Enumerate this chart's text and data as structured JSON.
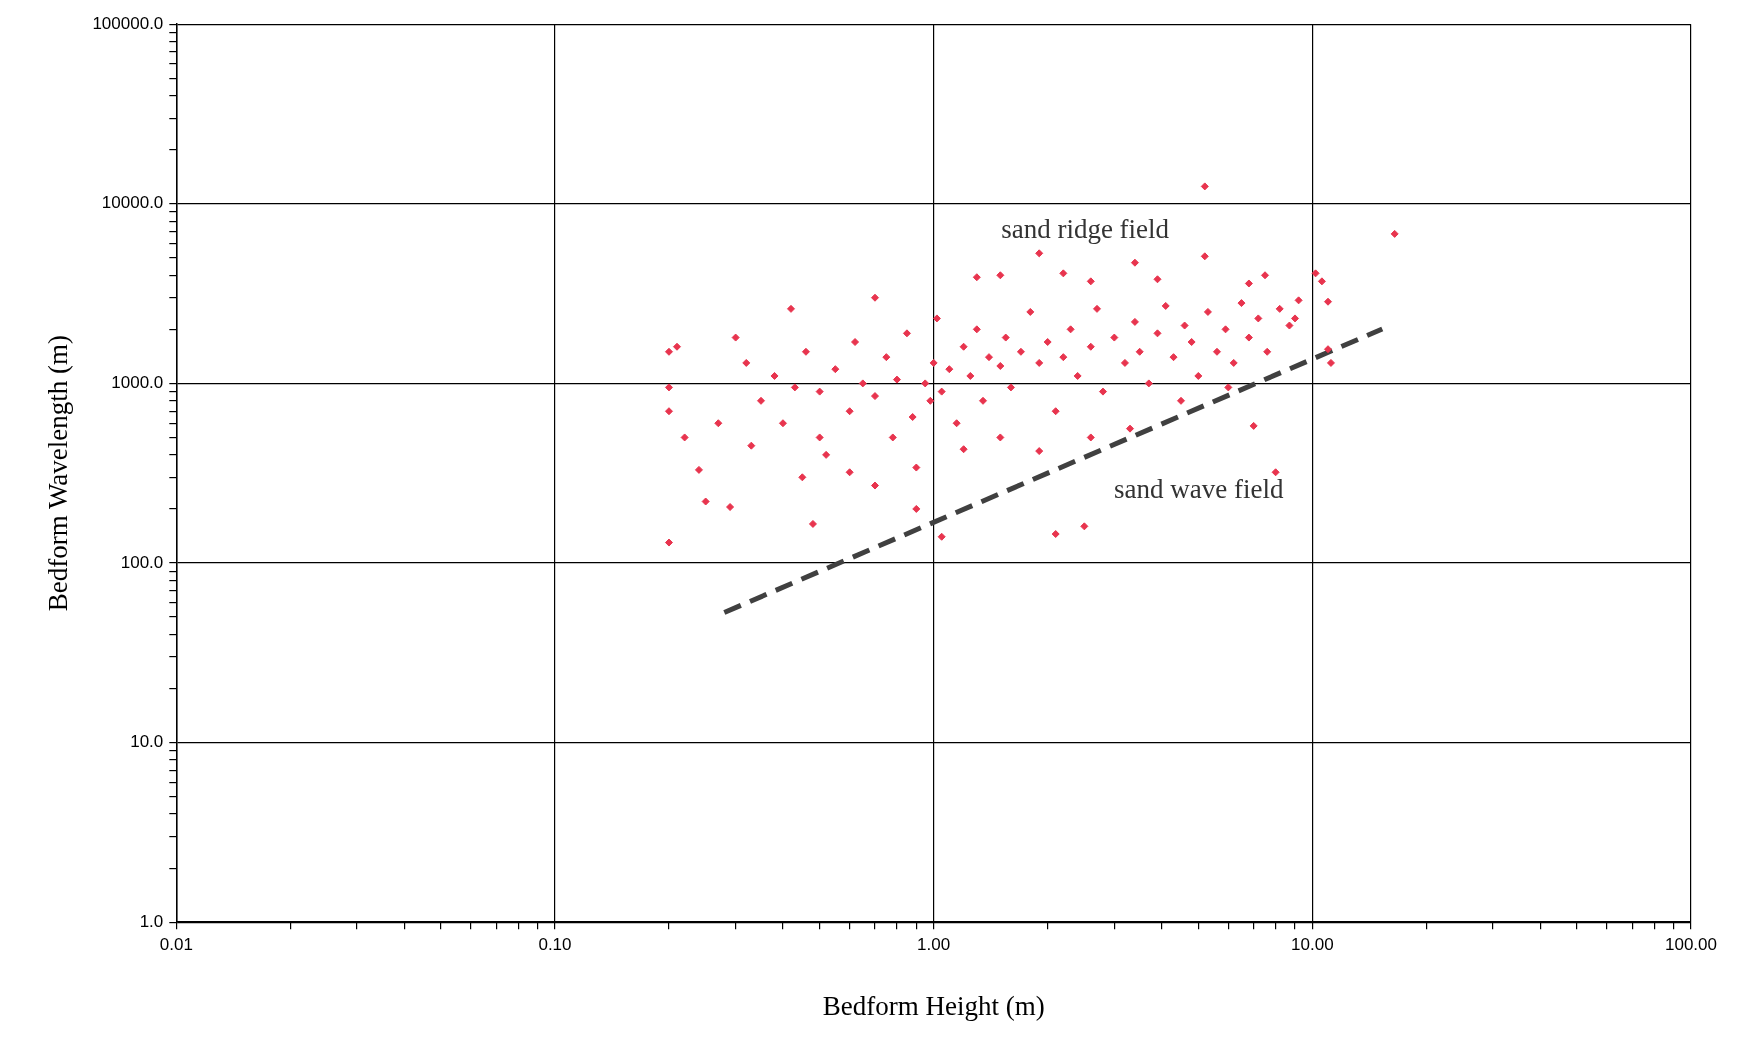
{
  "chart_data": {
    "type": "scatter",
    "xlabel": "Bedform Height (m)",
    "ylabel": "Bedform Wavelength (m)",
    "log": "xy",
    "xlim": [
      0.01,
      100
    ],
    "ylim": [
      1,
      100000
    ],
    "xticks": [
      {
        "value": 0.01,
        "label": "0.01"
      },
      {
        "value": 0.02,
        "label": null
      },
      {
        "value": 0.03,
        "label": null
      },
      {
        "value": 0.04,
        "label": null
      },
      {
        "value": 0.05,
        "label": null
      },
      {
        "value": 0.06,
        "label": null
      },
      {
        "value": 0.07,
        "label": null
      },
      {
        "value": 0.08,
        "label": null
      },
      {
        "value": 0.09,
        "label": null
      },
      {
        "value": 0.1,
        "label": "0.10"
      },
      {
        "value": 0.2,
        "label": null
      },
      {
        "value": 0.3,
        "label": null
      },
      {
        "value": 0.4,
        "label": null
      },
      {
        "value": 0.5,
        "label": null
      },
      {
        "value": 0.6,
        "label": null
      },
      {
        "value": 0.7,
        "label": null
      },
      {
        "value": 0.8,
        "label": null
      },
      {
        "value": 0.9,
        "label": null
      },
      {
        "value": 1,
        "label": "1.00"
      },
      {
        "value": 2,
        "label": null
      },
      {
        "value": 3,
        "label": null
      },
      {
        "value": 4,
        "label": null
      },
      {
        "value": 5,
        "label": null
      },
      {
        "value": 6,
        "label": null
      },
      {
        "value": 7,
        "label": null
      },
      {
        "value": 8,
        "label": null
      },
      {
        "value": 9,
        "label": null
      },
      {
        "value": 10,
        "label": "10.00"
      },
      {
        "value": 20,
        "label": null
      },
      {
        "value": 30,
        "label": null
      },
      {
        "value": 40,
        "label": null
      },
      {
        "value": 50,
        "label": null
      },
      {
        "value": 60,
        "label": null
      },
      {
        "value": 70,
        "label": null
      },
      {
        "value": 80,
        "label": null
      },
      {
        "value": 90,
        "label": null
      },
      {
        "value": 100,
        "label": "100.00"
      }
    ],
    "yticks": [
      {
        "value": 1,
        "label": "1.0"
      },
      {
        "value": 2,
        "label": null
      },
      {
        "value": 3,
        "label": null
      },
      {
        "value": 4,
        "label": null
      },
      {
        "value": 5,
        "label": null
      },
      {
        "value": 6,
        "label": null
      },
      {
        "value": 7,
        "label": null
      },
      {
        "value": 8,
        "label": null
      },
      {
        "value": 9,
        "label": null
      },
      {
        "value": 10,
        "label": "10.0"
      },
      {
        "value": 20,
        "label": null
      },
      {
        "value": 30,
        "label": null
      },
      {
        "value": 40,
        "label": null
      },
      {
        "value": 50,
        "label": null
      },
      {
        "value": 60,
        "label": null
      },
      {
        "value": 70,
        "label": null
      },
      {
        "value": 80,
        "label": null
      },
      {
        "value": 90,
        "label": null
      },
      {
        "value": 100,
        "label": "100.0"
      },
      {
        "value": 200,
        "label": null
      },
      {
        "value": 300,
        "label": null
      },
      {
        "value": 400,
        "label": null
      },
      {
        "value": 500,
        "label": null
      },
      {
        "value": 600,
        "label": null
      },
      {
        "value": 700,
        "label": null
      },
      {
        "value": 800,
        "label": null
      },
      {
        "value": 900,
        "label": null
      },
      {
        "value": 1000,
        "label": "1000.0"
      },
      {
        "value": 2000,
        "label": null
      },
      {
        "value": 3000,
        "label": null
      },
      {
        "value": 4000,
        "label": null
      },
      {
        "value": 5000,
        "label": null
      },
      {
        "value": 6000,
        "label": null
      },
      {
        "value": 7000,
        "label": null
      },
      {
        "value": 8000,
        "label": null
      },
      {
        "value": 9000,
        "label": null
      },
      {
        "value": 10000,
        "label": "10000.0"
      },
      {
        "value": 20000,
        "label": null
      },
      {
        "value": 30000,
        "label": null
      },
      {
        "value": 40000,
        "label": null
      },
      {
        "value": 50000,
        "label": null
      },
      {
        "value": 60000,
        "label": null
      },
      {
        "value": 70000,
        "label": null
      },
      {
        "value": 80000,
        "label": null
      },
      {
        "value": 90000,
        "label": null
      },
      {
        "value": 100000,
        "label": "100000.0"
      }
    ],
    "grid": true,
    "legend": false,
    "annotations": [
      "sand ridge field",
      "sand wave field"
    ],
    "series": [
      {
        "color": "#e8344e",
        "marker": "diamond",
        "x": [
          5.2,
          16.5,
          1.9,
          5.2,
          3.4,
          0.2,
          0.25,
          0.29,
          0.48,
          0.9,
          1.05,
          2.1,
          2.5,
          8,
          7,
          10.2,
          10.6,
          11,
          11.2,
          11,
          0.42,
          0.7,
          1.3,
          1.5,
          2.2,
          2.6,
          3.9,
          7.5,
          6.8,
          9.2,
          9,
          0.2,
          0.2,
          0.2,
          0.21,
          0.22,
          0.24,
          0.27,
          0.3,
          0.32,
          0.35,
          0.38,
          0.4,
          0.43,
          0.46,
          0.5,
          0.52,
          0.55,
          0.6,
          0.62,
          0.65,
          0.7,
          0.75,
          0.78,
          0.8,
          0.85,
          0.88,
          0.95,
          0.98,
          1,
          1.02,
          1.05,
          1.1,
          1.15,
          1.2,
          1.25,
          1.3,
          1.35,
          1.4,
          1.5,
          1.55,
          1.6,
          1.7,
          1.8,
          1.9,
          2,
          2.1,
          2.2,
          2.3,
          2.4,
          2.6,
          2.7,
          2.8,
          3,
          3.2,
          3.4,
          3.5,
          3.7,
          3.9,
          4.1,
          4.3,
          4.6,
          4.8,
          5,
          5.3,
          5.6,
          5.9,
          6.2,
          6.5,
          6.8,
          7.2,
          7.6,
          8.2,
          8.7,
          0.33,
          0.45,
          0.6,
          0.7,
          1.2,
          1.5,
          1.9,
          2.6,
          3.3,
          0.9,
          0.5,
          4.5,
          6
        ],
        "values": [
          12500,
          6800,
          5300,
          5100,
          4700,
          130,
          220,
          205,
          165,
          200,
          140,
          145,
          160,
          320,
          580,
          4100,
          3700,
          1550,
          1300,
          2850,
          2600,
          3000,
          3900,
          4000,
          4100,
          3700,
          3800,
          4000,
          3600,
          2900,
          2300,
          1500,
          950,
          700,
          1600,
          500,
          330,
          600,
          1800,
          1300,
          800,
          1100,
          600,
          950,
          1500,
          900,
          400,
          1200,
          700,
          1700,
          1000,
          850,
          1400,
          500,
          1050,
          1900,
          650,
          1000,
          800,
          1300,
          2300,
          900,
          1200,
          600,
          1600,
          1100,
          2000,
          800,
          1400,
          1250,
          1800,
          950,
          1500,
          2500,
          1300,
          1700,
          700,
          1400,
          2000,
          1100,
          1600,
          2600,
          900,
          1800,
          1300,
          2200,
          1500,
          1000,
          1900,
          2700,
          1400,
          2100,
          1700,
          1100,
          2500,
          1500,
          2000,
          1300,
          2800,
          1800,
          2300,
          1500,
          2600,
          2100,
          450,
          300,
          320,
          270,
          430,
          500,
          420,
          500,
          560,
          340,
          500,
          800,
          950
        ]
      },
      {
        "type": "line",
        "color": "#404040",
        "line_style": "dashed",
        "marker": "none",
        "x": [
          0.28,
          15.3
        ],
        "values": [
          53,
          2010
        ]
      }
    ]
  }
}
